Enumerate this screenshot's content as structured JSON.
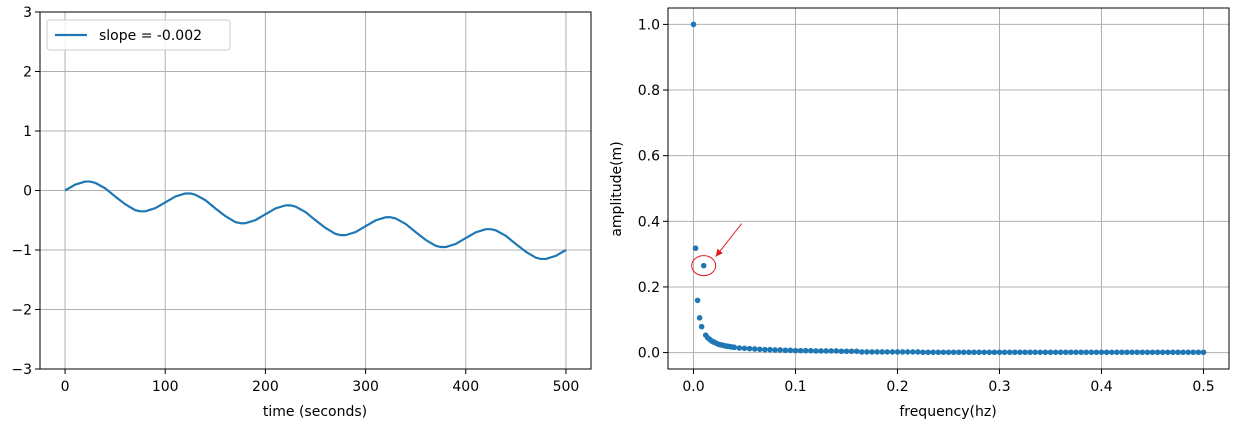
{
  "colors": {
    "series": "#1f77b4",
    "annotation": "#e31a1c",
    "grid": "#b0b0b0"
  },
  "chart_data": [
    {
      "type": "line",
      "xlabel": "time (seconds)",
      "ylabel": "",
      "xlim": [
        -25,
        525
      ],
      "ylim": [
        -3,
        3
      ],
      "xticks": [
        0,
        100,
        200,
        300,
        400,
        500
      ],
      "yticks": [
        -3,
        -2,
        -1,
        0,
        1,
        2,
        3
      ],
      "xtick_labels": [
        "0",
        "100",
        "200",
        "300",
        "400",
        "500"
      ],
      "ytick_labels": [
        "−3",
        "−2",
        "−1",
        "0",
        "1",
        "2",
        "3"
      ],
      "grid": true,
      "legend": "upper-left",
      "series": [
        {
          "name": "slope = -0.002",
          "description": "sine wave (amplitude 0.2, period 100 s) with linear trend slope -0.002",
          "x": [
            0,
            10,
            20,
            25,
            30,
            40,
            50,
            60,
            70,
            75,
            80,
            90,
            100,
            110,
            120,
            125,
            130,
            140,
            150,
            160,
            170,
            175,
            180,
            190,
            200,
            210,
            220,
            225,
            230,
            240,
            250,
            260,
            270,
            275,
            280,
            290,
            300,
            310,
            320,
            325,
            330,
            340,
            350,
            360,
            370,
            375,
            380,
            390,
            400,
            410,
            420,
            425,
            430,
            440,
            450,
            460,
            470,
            475,
            480,
            490,
            500
          ],
          "y": [
            0.0,
            0.098,
            0.15,
            0.15,
            0.13,
            0.038,
            -0.1,
            -0.23,
            -0.33,
            -0.35,
            -0.35,
            -0.298,
            -0.2,
            -0.102,
            -0.05,
            -0.05,
            -0.07,
            -0.162,
            -0.3,
            -0.43,
            -0.53,
            -0.55,
            -0.55,
            -0.498,
            -0.4,
            -0.302,
            -0.25,
            -0.25,
            -0.27,
            -0.362,
            -0.5,
            -0.63,
            -0.73,
            -0.75,
            -0.75,
            -0.698,
            -0.6,
            -0.502,
            -0.45,
            -0.45,
            -0.47,
            -0.562,
            -0.7,
            -0.83,
            -0.93,
            -0.95,
            -0.95,
            -0.898,
            -0.8,
            -0.702,
            -0.65,
            -0.65,
            -0.67,
            -0.762,
            -0.9,
            -1.03,
            -1.13,
            -1.15,
            -1.15,
            -1.098,
            -1.0
          ]
        }
      ]
    },
    {
      "type": "scatter",
      "xlabel": "frequency(hz)",
      "ylabel": "amplitude(m)",
      "xlim": [
        -0.025,
        0.525
      ],
      "ylim": [
        -0.05,
        1.05
      ],
      "xticks": [
        0.0,
        0.1,
        0.2,
        0.3,
        0.4,
        0.5
      ],
      "yticks": [
        0.0,
        0.2,
        0.4,
        0.6,
        0.8,
        1.0
      ],
      "xtick_labels": [
        "0.0",
        "0.1",
        "0.2",
        "0.3",
        "0.4",
        "0.5"
      ],
      "ytick_labels": [
        "0.0",
        "0.2",
        "0.4",
        "0.6",
        "0.8",
        "1.0"
      ],
      "grid": true,
      "annotation": {
        "type": "circle-with-arrow",
        "target_x": 0.01,
        "target_y": 0.265,
        "color": "#e31a1c"
      },
      "series": [
        {
          "name": "",
          "x": [
            0.0,
            0.002,
            0.004,
            0.006,
            0.008,
            0.01,
            0.012,
            0.014,
            0.016,
            0.018,
            0.02,
            0.022,
            0.024,
            0.026,
            0.028,
            0.03,
            0.032,
            0.034,
            0.036,
            0.038,
            0.04,
            0.045,
            0.05,
            0.055,
            0.06,
            0.065,
            0.07,
            0.075,
            0.08,
            0.085,
            0.09,
            0.095,
            0.1,
            0.105,
            0.11,
            0.115,
            0.12,
            0.125,
            0.13,
            0.135,
            0.14,
            0.145,
            0.15,
            0.155,
            0.16,
            0.165,
            0.17,
            0.175,
            0.18,
            0.185,
            0.19,
            0.195,
            0.2,
            0.205,
            0.21,
            0.215,
            0.22,
            0.225,
            0.23,
            0.235,
            0.24,
            0.245,
            0.25,
            0.255,
            0.26,
            0.265,
            0.27,
            0.275,
            0.28,
            0.285,
            0.29,
            0.295,
            0.3,
            0.305,
            0.31,
            0.315,
            0.32,
            0.325,
            0.33,
            0.335,
            0.34,
            0.345,
            0.35,
            0.355,
            0.36,
            0.365,
            0.37,
            0.375,
            0.38,
            0.385,
            0.39,
            0.395,
            0.4,
            0.405,
            0.41,
            0.415,
            0.42,
            0.425,
            0.43,
            0.435,
            0.44,
            0.445,
            0.45,
            0.455,
            0.46,
            0.465,
            0.47,
            0.475,
            0.48,
            0.485,
            0.49,
            0.495,
            0.5
          ],
          "y": [
            1.0,
            0.318,
            0.159,
            0.106,
            0.079,
            0.265,
            0.053,
            0.045,
            0.04,
            0.035,
            0.032,
            0.029,
            0.026,
            0.024,
            0.023,
            0.021,
            0.02,
            0.019,
            0.018,
            0.017,
            0.016,
            0.014,
            0.013,
            0.012,
            0.011,
            0.01,
            0.009,
            0.009,
            0.008,
            0.008,
            0.007,
            0.007,
            0.006,
            0.006,
            0.006,
            0.006,
            0.005,
            0.005,
            0.005,
            0.005,
            0.005,
            0.004,
            0.004,
            0.004,
            0.004,
            0.002,
            0.002,
            0.002,
            0.002,
            0.002,
            0.002,
            0.002,
            0.002,
            0.002,
            0.002,
            0.002,
            0.002,
            0.001,
            0.001,
            0.001,
            0.001,
            0.001,
            0.001,
            0.001,
            0.001,
            0.001,
            0.001,
            0.001,
            0.001,
            0.001,
            0.001,
            0.001,
            0.001,
            0.001,
            0.001,
            0.001,
            0.001,
            0.001,
            0.001,
            0.001,
            0.001,
            0.001,
            0.001,
            0.001,
            0.001,
            0.001,
            0.001,
            0.001,
            0.001,
            0.001,
            0.001,
            0.001,
            0.001,
            0.001,
            0.001,
            0.001,
            0.001,
            0.001,
            0.001,
            0.001,
            0.001,
            0.001,
            0.001,
            0.001,
            0.001,
            0.001,
            0.001,
            0.001,
            0.001,
            0.001,
            0.001,
            0.001,
            0.001
          ]
        }
      ]
    }
  ]
}
